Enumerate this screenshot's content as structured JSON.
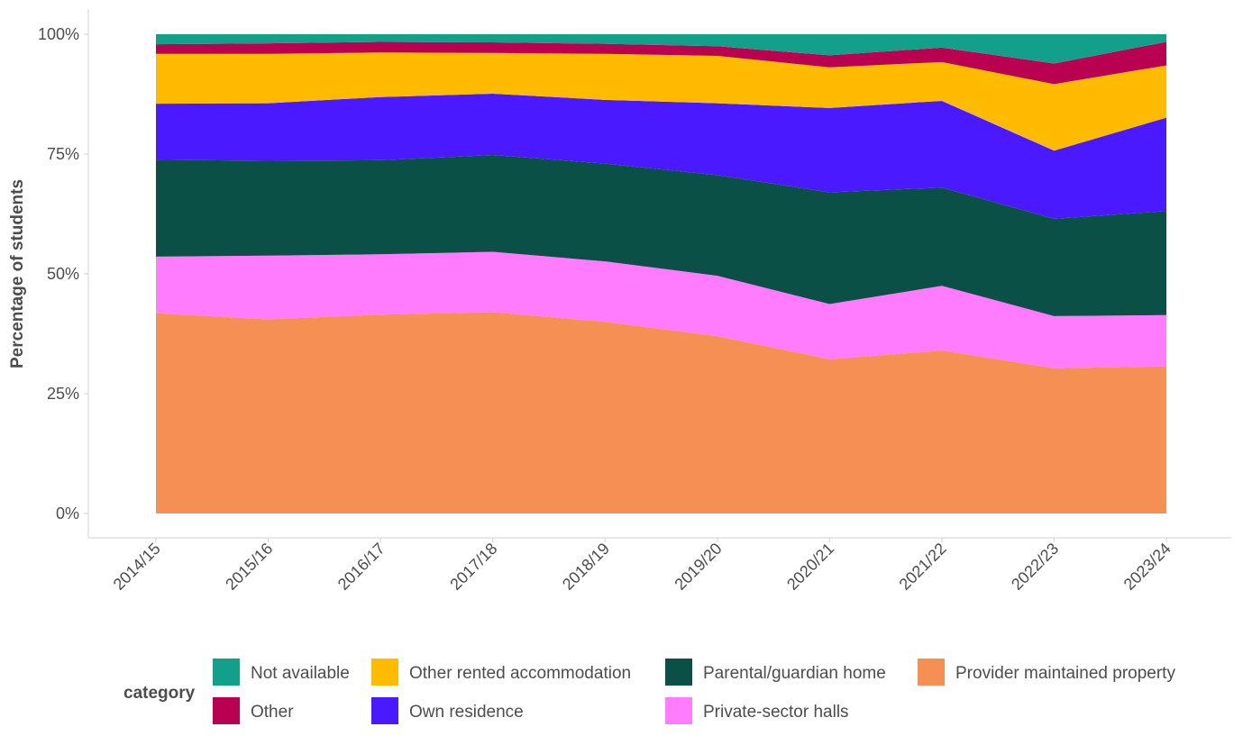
{
  "chart_data": {
    "type": "area",
    "stacked": true,
    "ylabel": "Percentage of students",
    "xlabel": "",
    "ylim": [
      0,
      100
    ],
    "y_ticks": [
      "0%",
      "25%",
      "50%",
      "75%",
      "100%"
    ],
    "y_tick_values": [
      0,
      25,
      50,
      75,
      100
    ],
    "grid": false,
    "legend_title": "category",
    "legend_position": "bottom",
    "categories": [
      "2014/15",
      "2015/16",
      "2016/17",
      "2017/18",
      "2018/19",
      "2019/20",
      "2020/21",
      "2021/22",
      "2022/23",
      "2023/24"
    ],
    "series": [
      {
        "name": "Provider maintained property",
        "color": "#F58F53",
        "values": [
          41.8,
          40.5,
          41.5,
          42.0,
          40.0,
          37.0,
          32.2,
          34.0,
          30.3,
          30.7
        ]
      },
      {
        "name": "Private-sector halls",
        "color": "#FF7BFF",
        "values": [
          11.8,
          13.3,
          12.6,
          12.6,
          12.6,
          12.6,
          11.5,
          13.5,
          10.9,
          10.7
        ]
      },
      {
        "name": "Parental/guardian home",
        "color": "#0A5046",
        "values": [
          20.2,
          19.8,
          19.6,
          20.2,
          20.4,
          21.0,
          23.3,
          20.5,
          20.3,
          21.7
        ]
      },
      {
        "name": "Own residence",
        "color": "#4B19FF",
        "values": [
          11.7,
          12.0,
          13.2,
          12.8,
          13.3,
          15.0,
          17.6,
          18.1,
          14.2,
          19.5
        ]
      },
      {
        "name": "Other rented accommodation",
        "color": "#FFBB00",
        "values": [
          10.4,
          10.3,
          9.3,
          8.5,
          9.6,
          9.9,
          8.5,
          8.1,
          13.9,
          10.9
        ]
      },
      {
        "name": "Other",
        "color": "#BA0051",
        "values": [
          2.0,
          2.2,
          2.2,
          2.2,
          2.1,
          2.0,
          2.5,
          3.0,
          4.3,
          4.9
        ]
      },
      {
        "name": "Not available",
        "color": "#12A08A",
        "values": [
          2.1,
          1.9,
          1.6,
          1.7,
          2.0,
          2.5,
          4.4,
          2.8,
          6.1,
          1.6
        ]
      }
    ],
    "legend_rows": [
      [
        "Not available",
        "Other rented accommodation",
        "Parental/guardian home",
        "Provider maintained property"
      ],
      [
        "Other",
        "Own residence",
        "Private-sector halls"
      ]
    ]
  }
}
